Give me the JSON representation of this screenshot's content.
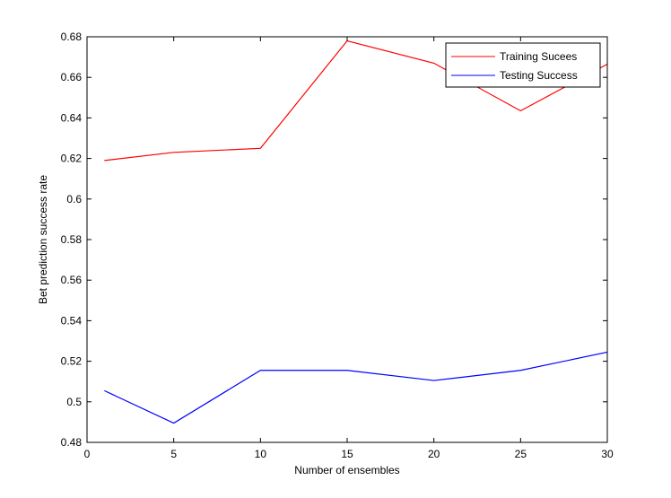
{
  "chart_data": {
    "type": "line",
    "xlabel": "Number of ensembles",
    "ylabel": "Bet prediction success rate",
    "xlim": [
      0,
      30
    ],
    "ylim": [
      0.48,
      0.68
    ],
    "xticks": [
      0,
      5,
      10,
      15,
      20,
      25,
      30
    ],
    "xtick_labels": [
      "0",
      "5",
      "10",
      "15",
      "20",
      "25",
      "30"
    ],
    "yticks": [
      0.48,
      0.5,
      0.52,
      0.54,
      0.56,
      0.58,
      0.6,
      0.62,
      0.64,
      0.66,
      0.68
    ],
    "ytick_labels": [
      "0.48",
      "0.5",
      "0.52",
      "0.54",
      "0.56",
      "0.58",
      "0.6",
      "0.62",
      "0.64",
      "0.66",
      "0.68"
    ],
    "grid": false,
    "legend_position": "top-right",
    "series": [
      {
        "name": "Training Sucees",
        "color": "#ff0000",
        "x": [
          1,
          5,
          10,
          15,
          20,
          25,
          30
        ],
        "y": [
          0.619,
          0.623,
          0.625,
          0.678,
          0.667,
          0.6435,
          0.6665
        ]
      },
      {
        "name": "Testing Success",
        "color": "#0000ff",
        "x": [
          1,
          5,
          10,
          15,
          20,
          25,
          30
        ],
        "y": [
          0.5055,
          0.4895,
          0.5155,
          0.5155,
          0.5105,
          0.5155,
          0.5245
        ]
      }
    ]
  }
}
